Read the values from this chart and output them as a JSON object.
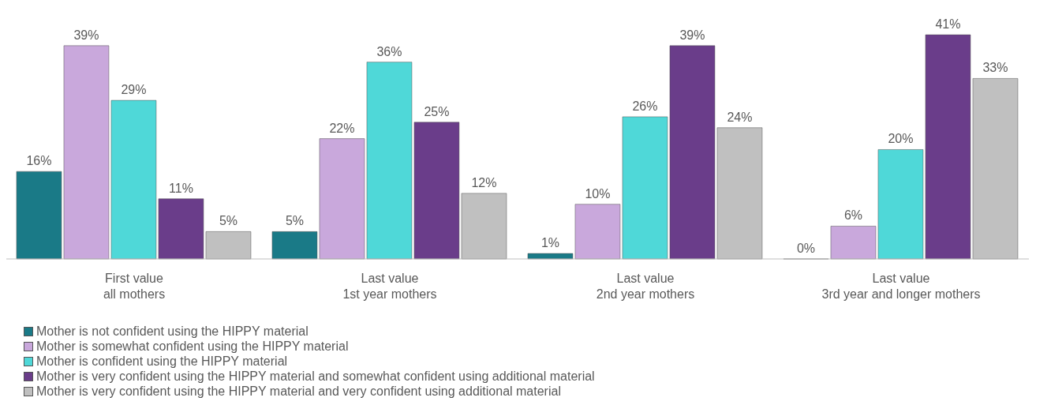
{
  "chart_data": {
    "type": "bar",
    "categories": [
      "First value\nall mothers",
      "Last value\n1st year mothers",
      "Last value\n2nd year mothers",
      "Last value\n3rd year and longer mothers"
    ],
    "series": [
      {
        "name": "Mother is not confident using the HIPPY material",
        "color": "#1a7a87",
        "values": [
          16,
          5,
          1,
          0
        ],
        "value_labels": [
          "16%",
          "5%",
          "1%",
          "0%"
        ]
      },
      {
        "name": "Mother is somewhat confident using the HIPPY material",
        "color": "#c9a8dc",
        "values": [
          39,
          22,
          10,
          6
        ],
        "value_labels": [
          "39%",
          "22%",
          "10%",
          "6%"
        ]
      },
      {
        "name": "Mother is confident using the HIPPY material",
        "color": "#4fd8d8",
        "values": [
          29,
          36,
          26,
          20
        ],
        "value_labels": [
          "29%",
          "36%",
          "26%",
          "20%"
        ]
      },
      {
        "name": "Mother is very confident using the HIPPY material and somewhat confident using additional material",
        "color": "#6a3d8a",
        "values": [
          11,
          25,
          39,
          41
        ],
        "value_labels": [
          "11%",
          "25%",
          "39%",
          "41%"
        ]
      },
      {
        "name": "Mother is very confident using the HIPPY material and very confident using additional material",
        "color": "#c0c0c0",
        "values": [
          5,
          12,
          24,
          33
        ],
        "value_labels": [
          "5%",
          "12%",
          "24%",
          "33%"
        ]
      }
    ],
    "legend": "bottom left",
    "grid": false
  }
}
